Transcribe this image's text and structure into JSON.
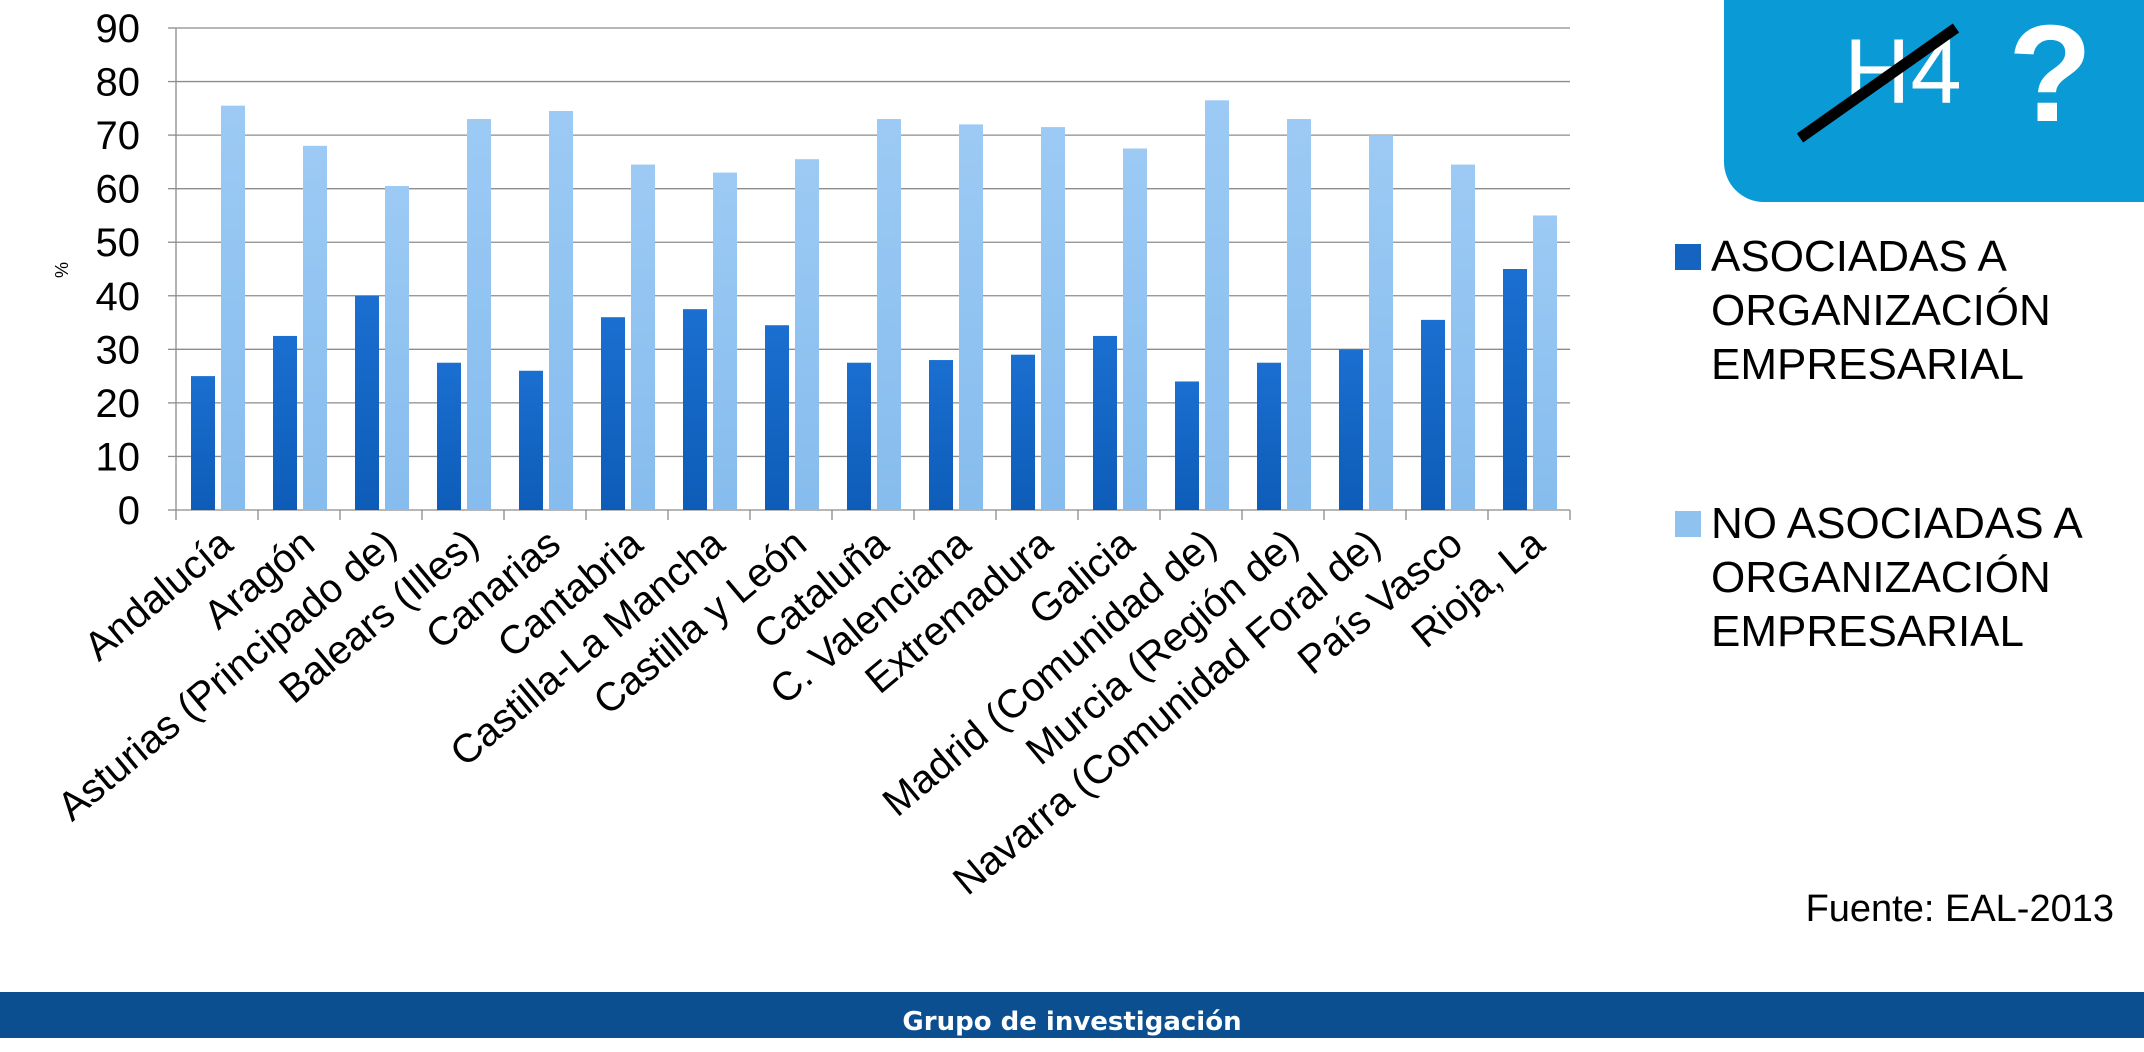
{
  "chart_data": {
    "type": "bar",
    "ylabel": "%",
    "ylim": [
      0,
      90
    ],
    "yticks": [
      0,
      10,
      20,
      30,
      40,
      50,
      60,
      70,
      80,
      90
    ],
    "grid": true,
    "legend_position": "right",
    "categories": [
      "Andalucía",
      "Aragón",
      "Asturias (Principado de)",
      "Balears (Illes)",
      "Canarias",
      "Cantabria",
      "Castilla-La Mancha",
      "Castilla y León",
      "Cataluña",
      "C. Valenciana",
      "Extremadura",
      "Galicia",
      "Madrid (Comunidad de)",
      "Murcia (Región de)",
      "Navarra (Comunidad Foral de)",
      "País Vasco",
      "Rioja, La"
    ],
    "series": [
      {
        "name": "ASOCIADAS A ORGANIZACIÓN EMPRESARIAL",
        "color": "#1565c0",
        "values": [
          25,
          32.5,
          40,
          27.5,
          26,
          36,
          37.5,
          34.5,
          27.5,
          28,
          29,
          32.5,
          24,
          27.5,
          30,
          35.5,
          45
        ]
      },
      {
        "name": "NO ASOCIADAS A ORGANIZACIÓN EMPRESARIAL",
        "color": "#90c2f0",
        "values": [
          75.5,
          68,
          60.5,
          73,
          74.5,
          64.5,
          63,
          65.5,
          73,
          72,
          71.5,
          67.5,
          76.5,
          73,
          70,
          64.5,
          55
        ]
      }
    ]
  },
  "badge": {
    "text": "H4",
    "mark": "?"
  },
  "legend": [
    {
      "label": "ASOCIADAS A ORGANIZACIÓN EMPRESARIAL",
      "color": "#1565c0"
    },
    {
      "label": "NO ASOCIADAS A ORGANIZACIÓN EMPRESARIAL",
      "color": "#90c2f0"
    }
  ],
  "source": "Fuente: EAL-2013",
  "footer": {
    "text": "Grupo de investigación"
  }
}
